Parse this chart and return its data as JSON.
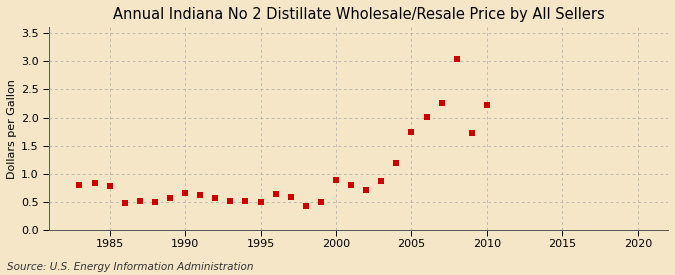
{
  "title": "Annual Indiana No 2 Distillate Wholesale/Resale Price by All Sellers",
  "ylabel": "Dollars per Gallon",
  "source": "Source: U.S. Energy Information Administration",
  "background_color": "#f5e6c8",
  "marker_color": "#cc0000",
  "years": [
    1983,
    1984,
    1985,
    1986,
    1987,
    1988,
    1989,
    1990,
    1991,
    1992,
    1993,
    1994,
    1995,
    1996,
    1997,
    1998,
    1999,
    2000,
    2001,
    2002,
    2003,
    2004,
    2005,
    2006,
    2007,
    2008,
    2009,
    2010
  ],
  "values": [
    0.81,
    0.84,
    0.79,
    0.49,
    0.52,
    0.51,
    0.57,
    0.67,
    0.62,
    0.57,
    0.53,
    0.52,
    0.51,
    0.65,
    0.59,
    0.43,
    0.51,
    0.9,
    0.8,
    0.72,
    0.88,
    1.19,
    1.75,
    2.01,
    2.25,
    3.04,
    1.73,
    2.22
  ],
  "xlim": [
    1981,
    2022
  ],
  "ylim": [
    0.0,
    3.6
  ],
  "xticks": [
    1985,
    1990,
    1995,
    2000,
    2005,
    2010,
    2015,
    2020
  ],
  "yticks": [
    0.0,
    0.5,
    1.0,
    1.5,
    2.0,
    2.5,
    3.0,
    3.5
  ],
  "grid_color": "#aaaaaa",
  "title_fontsize": 10.5,
  "label_fontsize": 8,
  "tick_fontsize": 8,
  "source_fontsize": 7.5,
  "marker_size": 4
}
